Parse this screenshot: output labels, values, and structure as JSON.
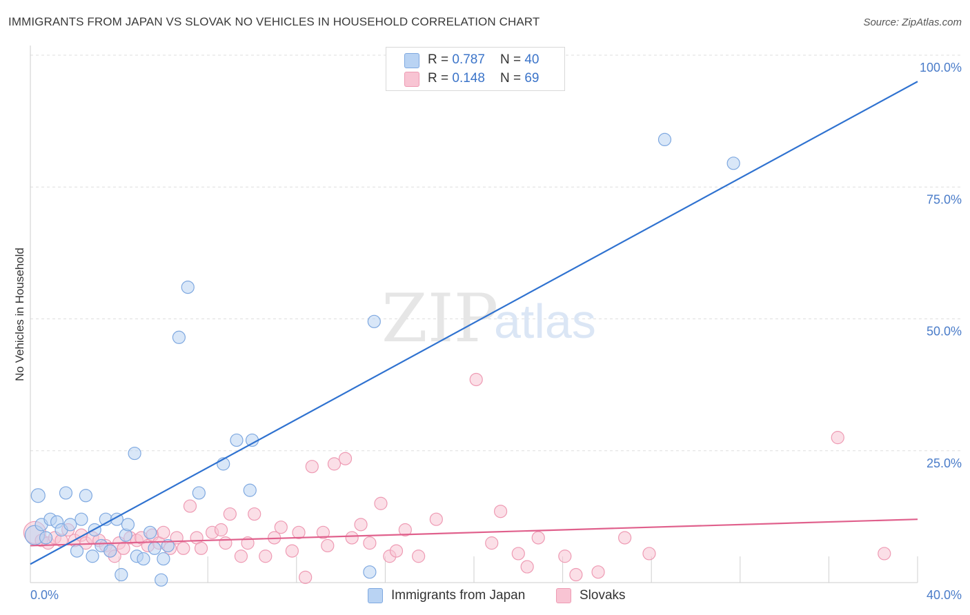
{
  "header": {
    "title": "IMMIGRANTS FROM JAPAN VS SLOVAK NO VEHICLES IN HOUSEHOLD CORRELATION CHART",
    "source": "Source: ZipAtlas.com"
  },
  "watermark": {
    "zip": "ZIP",
    "atlas": "atlas"
  },
  "legend": {
    "r_label": "R =",
    "n_label": "N =",
    "series": [
      {
        "name": "Immigrants from Japan",
        "r": "0.787",
        "n": "40"
      },
      {
        "name": "Slovaks",
        "r": "0.148",
        "n": "69"
      }
    ]
  },
  "colors": {
    "japan_fill": "#b9d3f3",
    "japan_stroke": "#7ea8e0",
    "japan_line": "#2f72d0",
    "slovak_fill": "#f8c4d3",
    "slovak_stroke": "#ee9ab3",
    "slovak_line": "#e0608c",
    "tick_label": "#4a7cc9",
    "grid": "#dddddd"
  },
  "chart_data": {
    "type": "scatter",
    "title": "IMMIGRANTS FROM JAPAN VS SLOVAK NO VEHICLES IN HOUSEHOLD CORRELATION CHART",
    "xlabel": "",
    "ylabel": "No Vehicles in Household",
    "xlim": [
      0,
      40
    ],
    "ylim": [
      0,
      100
    ],
    "x_tick_labels": [
      {
        "value": 0,
        "label": "0.0%"
      },
      {
        "value": 40,
        "label": "40.0%"
      }
    ],
    "y_tick_labels": [
      {
        "value": 25,
        "label": "25.0%"
      },
      {
        "value": 50,
        "label": "50.0%"
      },
      {
        "value": 75,
        "label": "75.0%"
      },
      {
        "value": 100,
        "label": "100.0%"
      }
    ],
    "series": [
      {
        "name": "Immigrants from Japan",
        "trend": {
          "x": [
            0,
            40
          ],
          "y": [
            3.5,
            95
          ]
        },
        "points": [
          [
            0.2,
            9.0,
            14
          ],
          [
            0.35,
            16.5,
            10
          ],
          [
            0.5,
            11.0,
            9
          ],
          [
            0.7,
            8.5,
            9
          ],
          [
            0.9,
            12.0,
            9
          ],
          [
            1.2,
            11.5,
            9
          ],
          [
            1.4,
            10.0,
            9
          ],
          [
            1.6,
            17.0,
            9
          ],
          [
            1.8,
            11.0,
            9
          ],
          [
            2.1,
            6.0,
            9
          ],
          [
            2.3,
            12.0,
            9
          ],
          [
            2.5,
            16.5,
            9
          ],
          [
            2.8,
            5.0,
            9
          ],
          [
            2.9,
            10.0,
            9
          ],
          [
            3.2,
            7.0,
            9
          ],
          [
            3.4,
            12.0,
            9
          ],
          [
            3.6,
            6.0,
            9
          ],
          [
            3.9,
            12.0,
            9
          ],
          [
            4.1,
            1.5,
            9
          ],
          [
            4.3,
            9.0,
            9
          ],
          [
            4.4,
            11.0,
            9
          ],
          [
            4.7,
            24.5,
            9
          ],
          [
            4.8,
            5.0,
            9
          ],
          [
            5.1,
            4.5,
            9
          ],
          [
            5.4,
            9.5,
            9
          ],
          [
            5.6,
            6.5,
            9
          ],
          [
            5.9,
            0.5,
            9
          ],
          [
            6.0,
            4.5,
            9
          ],
          [
            6.2,
            7.0,
            9
          ],
          [
            6.7,
            46.5,
            9
          ],
          [
            7.1,
            56.0,
            9
          ],
          [
            7.6,
            17.0,
            9
          ],
          [
            8.7,
            22.5,
            9
          ],
          [
            9.3,
            27.0,
            9
          ],
          [
            9.9,
            17.5,
            9
          ],
          [
            10.0,
            27.0,
            9
          ],
          [
            15.3,
            2.0,
            9
          ],
          [
            15.5,
            49.5,
            9
          ],
          [
            28.6,
            84.0,
            9
          ],
          [
            31.7,
            79.5,
            9
          ]
        ]
      },
      {
        "name": "Slovaks",
        "trend": {
          "x": [
            0,
            40
          ],
          "y": [
            7.0,
            12.0
          ]
        },
        "points": [
          [
            0.2,
            9.5,
            16
          ],
          [
            0.5,
            8.0,
            9
          ],
          [
            0.8,
            7.5,
            9
          ],
          [
            1.1,
            8.5,
            9
          ],
          [
            1.4,
            8.0,
            9
          ],
          [
            1.7,
            10.0,
            9
          ],
          [
            2.0,
            8.0,
            9
          ],
          [
            2.3,
            9.0,
            9
          ],
          [
            2.5,
            7.5,
            9
          ],
          [
            2.8,
            8.5,
            9
          ],
          [
            3.1,
            8.0,
            9
          ],
          [
            3.4,
            7.0,
            9
          ],
          [
            3.6,
            6.0,
            9
          ],
          [
            3.8,
            5.0,
            9
          ],
          [
            4.0,
            7.5,
            9
          ],
          [
            4.2,
            6.5,
            9
          ],
          [
            4.5,
            8.5,
            9
          ],
          [
            4.8,
            8.0,
            9
          ],
          [
            5.0,
            8.5,
            9
          ],
          [
            5.3,
            7.0,
            9
          ],
          [
            5.5,
            9.0,
            9
          ],
          [
            5.8,
            7.5,
            9
          ],
          [
            6.0,
            9.5,
            9
          ],
          [
            6.3,
            6.5,
            9
          ],
          [
            6.6,
            8.5,
            9
          ],
          [
            6.9,
            6.5,
            9
          ],
          [
            7.2,
            14.5,
            9
          ],
          [
            7.5,
            8.5,
            9
          ],
          [
            7.7,
            6.5,
            9
          ],
          [
            8.2,
            9.5,
            9
          ],
          [
            8.6,
            10.0,
            9
          ],
          [
            8.8,
            7.5,
            9
          ],
          [
            9.0,
            13.0,
            9
          ],
          [
            9.5,
            5.0,
            9
          ],
          [
            9.8,
            7.5,
            9
          ],
          [
            10.1,
            13.0,
            9
          ],
          [
            10.6,
            5.0,
            9
          ],
          [
            11.0,
            8.5,
            9
          ],
          [
            11.3,
            10.5,
            9
          ],
          [
            11.8,
            6.0,
            9
          ],
          [
            12.1,
            9.5,
            9
          ],
          [
            12.4,
            1.0,
            9
          ],
          [
            12.7,
            22.0,
            9
          ],
          [
            13.2,
            9.5,
            9
          ],
          [
            13.4,
            7.0,
            9
          ],
          [
            13.7,
            22.5,
            9
          ],
          [
            14.2,
            23.5,
            9
          ],
          [
            14.5,
            8.5,
            9
          ],
          [
            14.9,
            11.0,
            9
          ],
          [
            15.3,
            7.5,
            9
          ],
          [
            15.8,
            15.0,
            9
          ],
          [
            16.2,
            5.0,
            9
          ],
          [
            16.5,
            6.0,
            9
          ],
          [
            16.9,
            10.0,
            9
          ],
          [
            17.5,
            5.0,
            9
          ],
          [
            18.3,
            12.0,
            9
          ],
          [
            20.1,
            38.5,
            9
          ],
          [
            20.8,
            7.5,
            9
          ],
          [
            21.2,
            13.5,
            9
          ],
          [
            22.0,
            5.5,
            9
          ],
          [
            22.4,
            3.0,
            9
          ],
          [
            22.9,
            8.5,
            9
          ],
          [
            24.1,
            5.0,
            9
          ],
          [
            24.6,
            1.5,
            9
          ],
          [
            25.6,
            2.0,
            9
          ],
          [
            26.8,
            8.5,
            9
          ],
          [
            27.9,
            5.5,
            9
          ],
          [
            36.4,
            27.5,
            9
          ],
          [
            38.5,
            5.5,
            9
          ]
        ]
      }
    ]
  }
}
